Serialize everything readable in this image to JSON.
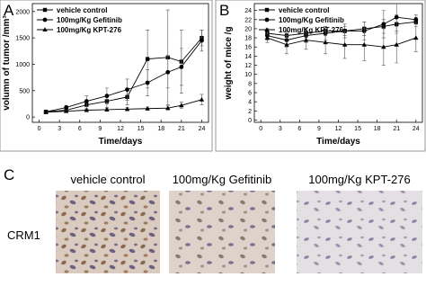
{
  "chart_data": [
    {
      "type": "line",
      "label": "A",
      "xlabel": "Time/days",
      "ylabel": "volumn of tumor /mm³",
      "x": [
        1,
        4,
        7,
        10,
        13,
        16,
        19,
        21,
        24
      ],
      "xlim": [
        -1,
        25
      ],
      "xticks": [
        0,
        3,
        6,
        9,
        12,
        15,
        18,
        21,
        24
      ],
      "ylim": [
        -100,
        2150
      ],
      "yticks": [
        0,
        500,
        1000,
        1500,
        2000
      ],
      "series": [
        {
          "name": "vehicle control",
          "color": "#000000",
          "marker": "square",
          "values": [
            100,
            130,
            230,
            300,
            380,
            1100,
            1130,
            1050,
            1500
          ],
          "errors": [
            10,
            30,
            80,
            120,
            150,
            550,
            900,
            600,
            150
          ]
        },
        {
          "name": "100mg/Kg Gefitinib",
          "color": "#000000",
          "marker": "circle",
          "values": [
            100,
            180,
            300,
            400,
            520,
            650,
            850,
            950,
            1450
          ],
          "errors": [
            10,
            40,
            100,
            150,
            200,
            250,
            300,
            350,
            200
          ]
        },
        {
          "name": "100mg/Kg KPT-276",
          "color": "#000000",
          "marker": "triangle",
          "values": [
            90,
            110,
            130,
            140,
            150,
            160,
            170,
            220,
            330
          ],
          "errors": [
            10,
            20,
            30,
            30,
            30,
            30,
            40,
            60,
            100
          ]
        }
      ]
    },
    {
      "type": "line",
      "label": "B",
      "xlabel": "Time/days",
      "ylabel": "weight of mice /g",
      "x": [
        1,
        4,
        7,
        10,
        13,
        16,
        19,
        21,
        24
      ],
      "xlim": [
        -1,
        25
      ],
      "xticks": [
        0,
        3,
        6,
        9,
        12,
        15,
        18,
        21,
        24
      ],
      "ylim": [
        -0.5,
        25.5
      ],
      "yticks": [
        0,
        2,
        4,
        6,
        8,
        10,
        12,
        14,
        16,
        18,
        20,
        22,
        24
      ],
      "series": [
        {
          "name": "vehicle control",
          "color": "#000000",
          "marker": "square",
          "values": [
            19,
            18.5,
            19,
            19.5,
            19.5,
            20,
            20.5,
            21,
            21.5
          ],
          "errors": [
            1,
            1,
            1,
            1,
            1,
            1.5,
            1.5,
            2,
            1
          ]
        },
        {
          "name": "100mg/Kg Gefitinib",
          "color": "#000000",
          "marker": "circle",
          "values": [
            18.5,
            17.5,
            18.5,
            19,
            19.5,
            19.5,
            21,
            22.5,
            22
          ],
          "errors": [
            1,
            1.5,
            1.5,
            1.5,
            1.5,
            2,
            3,
            3,
            1
          ]
        },
        {
          "name": "100mg/Kg KPT-276",
          "color": "#000000",
          "marker": "triangle",
          "values": [
            18,
            16.5,
            17.5,
            17,
            16.5,
            16.5,
            16,
            16.5,
            18
          ],
          "errors": [
            1,
            2,
            2,
            2.5,
            3,
            3.5,
            4,
            4,
            3
          ]
        }
      ]
    }
  ],
  "panel_c": {
    "label": "C",
    "row_label": "CRM1",
    "columns": [
      "vehicle control",
      "100mg/Kg Gefitinib",
      "100mg/Kg KPT-276"
    ]
  }
}
